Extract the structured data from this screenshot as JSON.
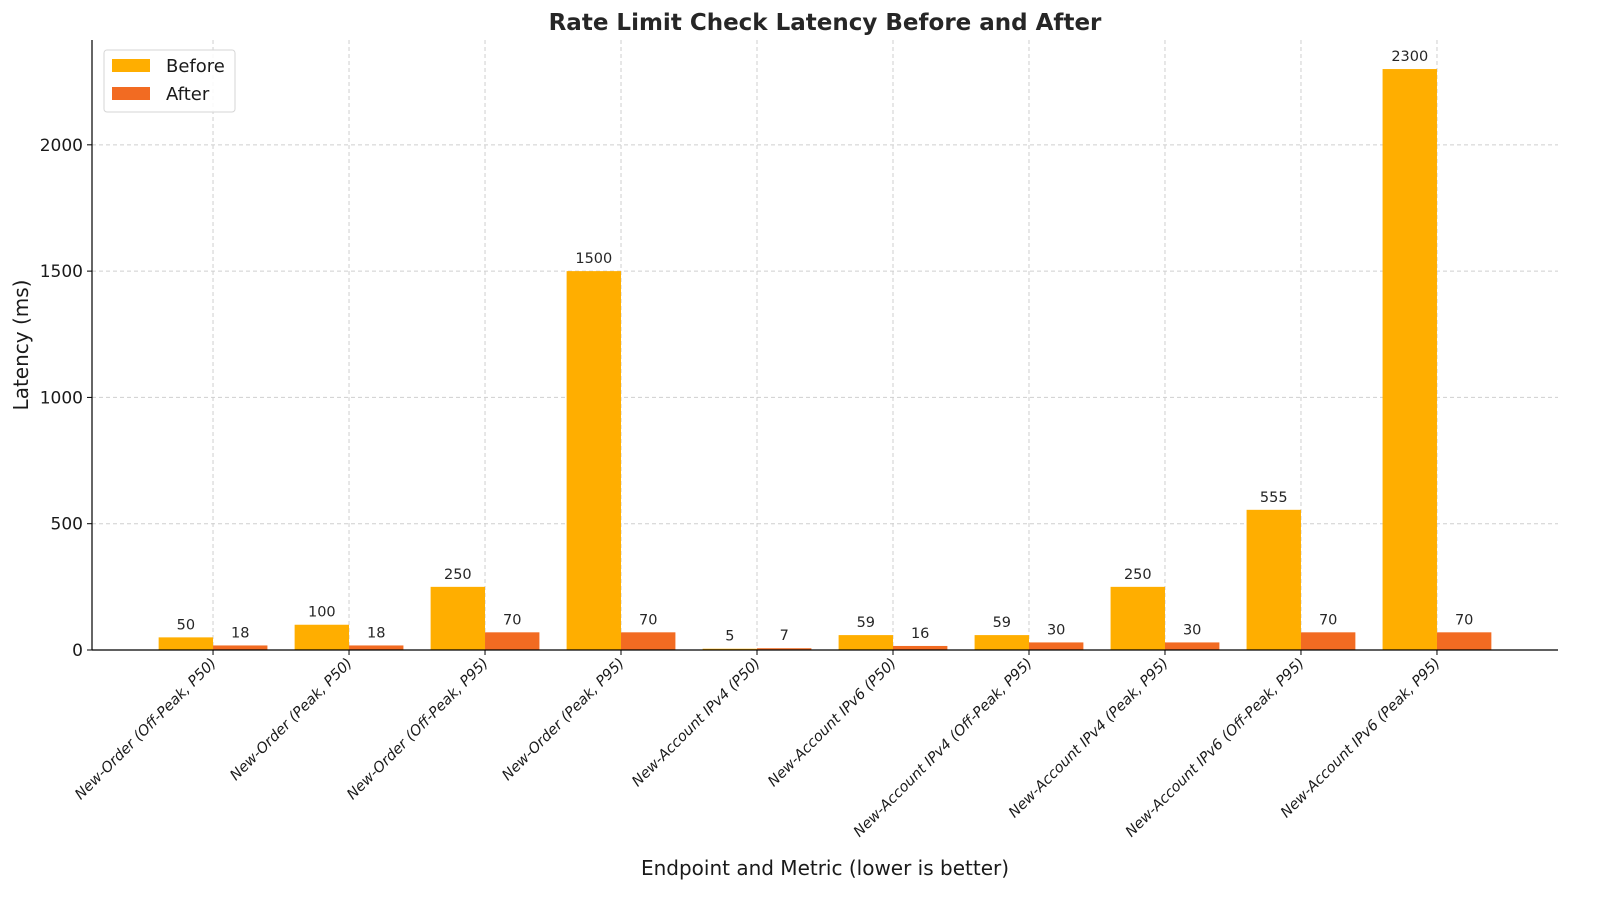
{
  "chart_data": {
    "type": "bar",
    "title": "Rate Limit Check Latency Before and After",
    "xlabel": "Endpoint and Metric (lower is better)",
    "ylabel": "Latency (ms)",
    "categories": [
      "New-Order (Off-Peak, P50)",
      "New-Order (Peak, P50)",
      "New-Order (Off-Peak, P95)",
      "New-Order (Peak, P95)",
      "New-Account IPv4 (P50)",
      "New-Account IPv6 (P50)",
      "New-Account IPv4 (Off-Peak, P95)",
      "New-Account IPv4 (Peak, P95)",
      "New-Account IPv6 (Off-Peak, P95)",
      "New-Account IPv6 (Peak, P95)"
    ],
    "series": [
      {
        "name": "Before",
        "color": "#FFAE00",
        "values": [
          50,
          100,
          250,
          1500,
          5,
          59,
          59,
          250,
          555,
          2300
        ]
      },
      {
        "name": "After",
        "color": "#F26B22",
        "values": [
          18,
          18,
          70,
          70,
          7,
          16,
          30,
          30,
          70,
          70
        ]
      }
    ],
    "ylim": [
      0,
      2415
    ],
    "yticks": [
      0,
      500,
      1000,
      1500,
      2000
    ],
    "grid": true,
    "legend": "top-left"
  }
}
